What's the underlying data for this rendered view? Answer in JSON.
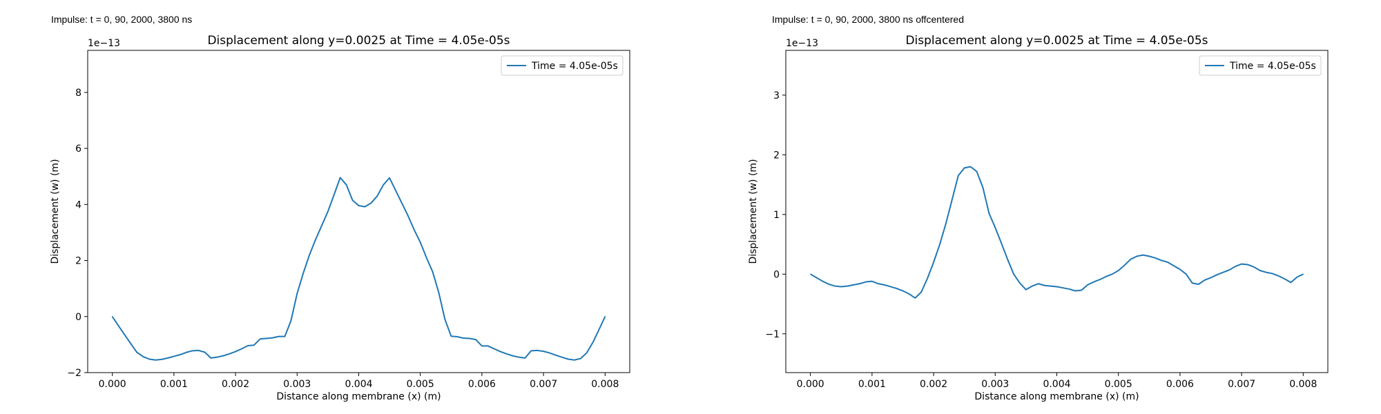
{
  "figure": {
    "panel_labels": [
      "Impulse: t = 0, 90, 2000, 3800 ns",
      "Impulse: t = 0, 90, 2000, 3800 ns offcentered"
    ]
  },
  "colors": {
    "series": "#1f77b4",
    "axes": "#000000"
  },
  "chart_data": [
    {
      "type": "line",
      "title": "Displacement along y=0.0025 at Time = 4.05e-05s",
      "xlabel": "Distance along membrane (x) (m)",
      "ylabel": "Displacement (w) (m)",
      "offset_text": "1e−13",
      "xlim": [
        -0.0004,
        0.0084
      ],
      "ylim": [
        -2.0,
        9.5
      ],
      "xticks": [
        0.0,
        0.001,
        0.002,
        0.003,
        0.004,
        0.005,
        0.006,
        0.007,
        0.008
      ],
      "xtick_labels": [
        "0.000",
        "0.001",
        "0.002",
        "0.003",
        "0.004",
        "0.005",
        "0.006",
        "0.007",
        "0.008"
      ],
      "yticks": [
        -2,
        0,
        2,
        4,
        6,
        8
      ],
      "ytick_labels": [
        "−2",
        "0",
        "2",
        "4",
        "6",
        "8"
      ],
      "grid": false,
      "legend_position": "upper right",
      "series": [
        {
          "name": "Time = 4.05e-05s",
          "color": "#1f77b4",
          "x": [
            0.0,
            0.0001,
            0.0002,
            0.0003,
            0.0004,
            0.0005,
            0.0006,
            0.0007,
            0.0008,
            0.0009,
            0.001,
            0.0011,
            0.0012,
            0.0013,
            0.0014,
            0.0015,
            0.0016,
            0.0017,
            0.0018,
            0.0019,
            0.002,
            0.0021,
            0.0022,
            0.0023,
            0.0024,
            0.0025,
            0.0026,
            0.0027,
            0.0028,
            0.0029,
            0.003,
            0.0031,
            0.0032,
            0.0033,
            0.0034,
            0.0035,
            0.0036,
            0.0037,
            0.0038,
            0.0039,
            0.004,
            0.0041,
            0.0042,
            0.0043,
            0.0044,
            0.0045,
            0.0046,
            0.0047,
            0.0048,
            0.0049,
            0.005,
            0.0051,
            0.0052,
            0.0053,
            0.0054,
            0.0055,
            0.0056,
            0.0057,
            0.0058,
            0.0059,
            0.006,
            0.0061,
            0.0062,
            0.0063,
            0.0064,
            0.0065,
            0.0066,
            0.0067,
            0.0068,
            0.0069,
            0.007,
            0.0071,
            0.0072,
            0.0073,
            0.0074,
            0.0075,
            0.0076,
            0.0077,
            0.0078,
            0.0079,
            0.008
          ],
          "y": [
            0.0,
            -0.33,
            -0.65,
            -0.97,
            -1.28,
            -1.43,
            -1.52,
            -1.55,
            -1.53,
            -1.48,
            -1.42,
            -1.36,
            -1.28,
            -1.22,
            -1.21,
            -1.27,
            -1.48,
            -1.45,
            -1.4,
            -1.33,
            -1.25,
            -1.15,
            -1.04,
            -1.02,
            -0.8,
            -0.78,
            -0.76,
            -0.71,
            -0.71,
            -0.15,
            0.82,
            1.55,
            2.2,
            2.75,
            3.25,
            3.75,
            4.35,
            4.96,
            4.7,
            4.15,
            3.96,
            3.92,
            4.05,
            4.3,
            4.7,
            4.95,
            4.5,
            4.05,
            3.6,
            3.1,
            2.65,
            2.1,
            1.6,
            0.85,
            -0.1,
            -0.7,
            -0.72,
            -0.77,
            -0.78,
            -0.82,
            -1.05,
            -1.05,
            -1.15,
            -1.25,
            -1.33,
            -1.4,
            -1.45,
            -1.48,
            -1.22,
            -1.21,
            -1.24,
            -1.3,
            -1.38,
            -1.45,
            -1.52,
            -1.55,
            -1.5,
            -1.3,
            -0.93,
            -0.47,
            0.0
          ]
        }
      ]
    },
    {
      "type": "line",
      "title": "Displacement along y=0.0025 at Time = 4.05e-05s",
      "xlabel": "Distance along membrane (x) (m)",
      "ylabel": "Displacement (w) (m)",
      "offset_text": "1e−13",
      "xlim": [
        -0.0004,
        0.0084
      ],
      "ylim": [
        -1.65,
        3.75
      ],
      "xticks": [
        0.0,
        0.001,
        0.002,
        0.003,
        0.004,
        0.005,
        0.006,
        0.007,
        0.008
      ],
      "xtick_labels": [
        "0.000",
        "0.001",
        "0.002",
        "0.003",
        "0.004",
        "0.005",
        "0.006",
        "0.007",
        "0.008"
      ],
      "yticks": [
        -1,
        0,
        1,
        2,
        3
      ],
      "ytick_labels": [
        "−1",
        "0",
        "1",
        "2",
        "3"
      ],
      "grid": false,
      "legend_position": "upper right",
      "series": [
        {
          "name": "Time = 4.05e-05s",
          "color": "#1f77b4",
          "x": [
            0.0,
            0.0001,
            0.0002,
            0.0003,
            0.0004,
            0.0005,
            0.0006,
            0.0007,
            0.0008,
            0.0009,
            0.001,
            0.0011,
            0.0012,
            0.0013,
            0.0014,
            0.0015,
            0.0016,
            0.0017,
            0.0018,
            0.0019,
            0.002,
            0.0021,
            0.0022,
            0.0023,
            0.0024,
            0.0025,
            0.0026,
            0.0027,
            0.0028,
            0.0029,
            0.003,
            0.0031,
            0.0032,
            0.0033,
            0.0034,
            0.0035,
            0.0036,
            0.0037,
            0.0038,
            0.0039,
            0.004,
            0.0041,
            0.0042,
            0.0043,
            0.0044,
            0.0045,
            0.0046,
            0.0047,
            0.0048,
            0.0049,
            0.005,
            0.0051,
            0.0052,
            0.0053,
            0.0054,
            0.0055,
            0.0056,
            0.0057,
            0.0058,
            0.0059,
            0.006,
            0.0061,
            0.0062,
            0.0063,
            0.0064,
            0.0065,
            0.0066,
            0.0067,
            0.0068,
            0.0069,
            0.007,
            0.0071,
            0.0072,
            0.0073,
            0.0074,
            0.0075,
            0.0076,
            0.0077,
            0.0078,
            0.0079,
            0.008
          ],
          "y": [
            0.0,
            -0.06,
            -0.12,
            -0.17,
            -0.2,
            -0.21,
            -0.2,
            -0.18,
            -0.16,
            -0.13,
            -0.12,
            -0.16,
            -0.18,
            -0.21,
            -0.24,
            -0.28,
            -0.33,
            -0.4,
            -0.3,
            -0.07,
            0.2,
            0.5,
            0.85,
            1.25,
            1.65,
            1.78,
            1.8,
            1.72,
            1.45,
            1.02,
            0.78,
            0.52,
            0.25,
            0.0,
            -0.15,
            -0.26,
            -0.2,
            -0.16,
            -0.19,
            -0.2,
            -0.21,
            -0.23,
            -0.25,
            -0.28,
            -0.27,
            -0.18,
            -0.13,
            -0.09,
            -0.04,
            0.0,
            0.06,
            0.15,
            0.25,
            0.3,
            0.32,
            0.3,
            0.27,
            0.23,
            0.2,
            0.14,
            0.08,
            0.0,
            -0.15,
            -0.17,
            -0.1,
            -0.06,
            -0.01,
            0.03,
            0.07,
            0.13,
            0.17,
            0.16,
            0.12,
            0.06,
            0.03,
            0.01,
            -0.03,
            -0.08,
            -0.14,
            -0.05,
            0.0
          ]
        }
      ]
    }
  ]
}
